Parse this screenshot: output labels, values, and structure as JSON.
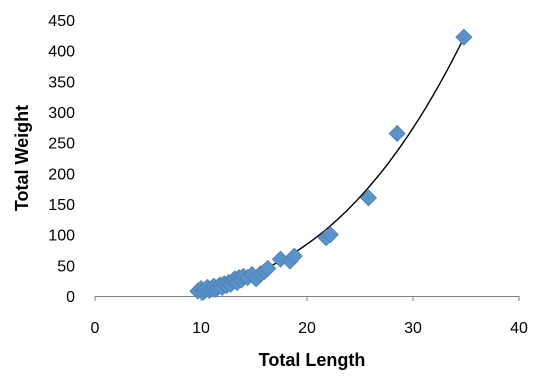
{
  "chart_data": {
    "type": "scatter",
    "title": "",
    "xlabel": "Total Length",
    "ylabel": "Total Weight",
    "xlim": [
      0,
      40
    ],
    "ylim": [
      0,
      450
    ],
    "xticks": [
      0,
      10,
      20,
      30,
      40
    ],
    "yticks": [
      0,
      50,
      100,
      150,
      200,
      250,
      300,
      350,
      400,
      450
    ],
    "grid": false,
    "legend": "none",
    "marker": "diamond",
    "marker_color": "#5b93c9",
    "trendline": {
      "type": "power",
      "color": "#000000",
      "x_range": [
        10,
        35
      ],
      "exponent": 2.9,
      "coefficient": 0.01425
    },
    "series": [
      {
        "points": [
          [
            9.7,
            8
          ],
          [
            10.0,
            12
          ],
          [
            10.2,
            6
          ],
          [
            10.4,
            10
          ],
          [
            10.6,
            14
          ],
          [
            10.8,
            9
          ],
          [
            11.0,
            12
          ],
          [
            11.2,
            16
          ],
          [
            11.4,
            11
          ],
          [
            11.6,
            15
          ],
          [
            11.8,
            18
          ],
          [
            12.0,
            14
          ],
          [
            12.2,
            20
          ],
          [
            12.4,
            17
          ],
          [
            12.6,
            22
          ],
          [
            12.8,
            19
          ],
          [
            13.0,
            25
          ],
          [
            13.2,
            28
          ],
          [
            13.4,
            22
          ],
          [
            13.6,
            30
          ],
          [
            13.8,
            26
          ],
          [
            14.0,
            32
          ],
          [
            14.4,
            30
          ],
          [
            14.8,
            35
          ],
          [
            15.2,
            28
          ],
          [
            15.6,
            36
          ],
          [
            16.0,
            40
          ],
          [
            16.3,
            45
          ],
          [
            17.5,
            60
          ],
          [
            18.4,
            57
          ],
          [
            18.8,
            65
          ],
          [
            21.8,
            95
          ],
          [
            22.2,
            100
          ],
          [
            25.8,
            160
          ],
          [
            28.5,
            265
          ],
          [
            34.8,
            422
          ]
        ]
      }
    ]
  }
}
